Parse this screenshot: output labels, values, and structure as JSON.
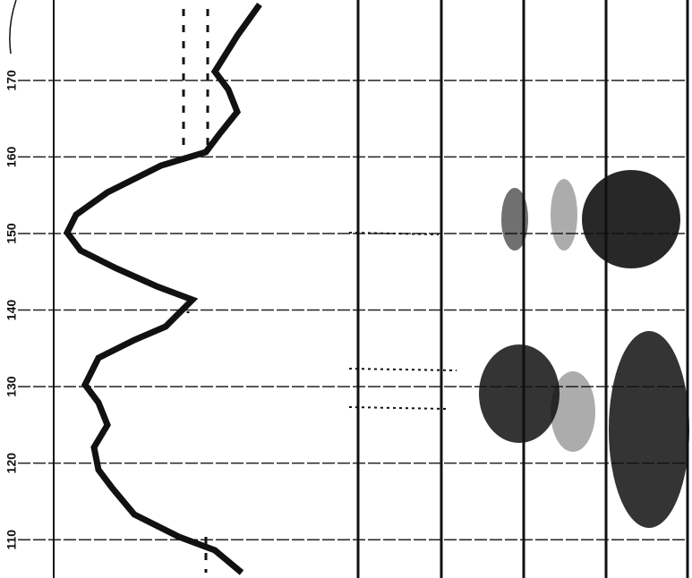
{
  "chart_data": {
    "type": "record",
    "ylim": [
      105,
      180.5
    ],
    "yticks": [
      110,
      120,
      130,
      140,
      150,
      160,
      170
    ],
    "grid": true
  }
}
